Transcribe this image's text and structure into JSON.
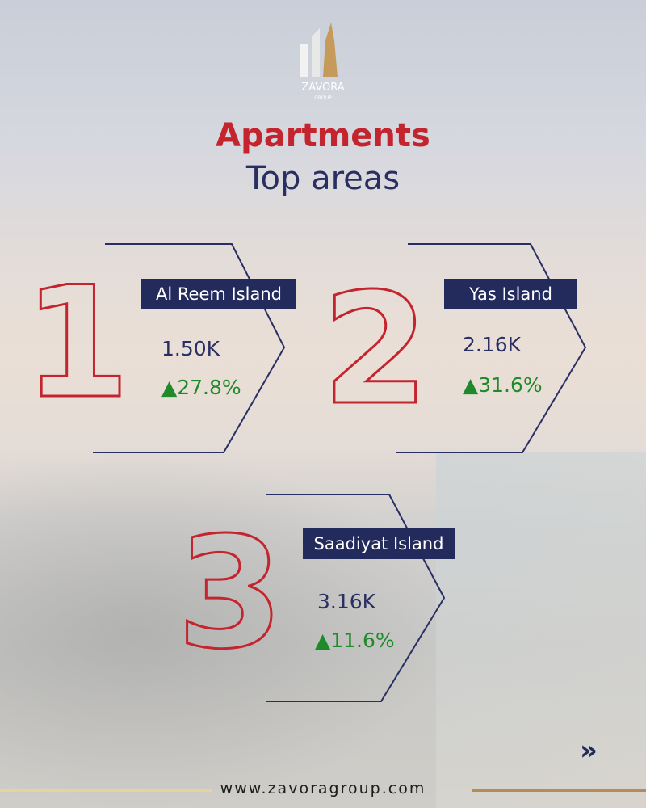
{
  "brand": {
    "name": "ZAVORA",
    "sub": "GROUP"
  },
  "title": "Apartments",
  "subtitle": "Top areas",
  "areas": [
    {
      "rank": "1",
      "name": "Al Reem Island",
      "value": "1.50K",
      "change": "▲27.8%"
    },
    {
      "rank": "2",
      "name": "Yas Island",
      "value": "2.16K",
      "change": "▲31.6%"
    },
    {
      "rank": "3",
      "name": "Saadiyat Island",
      "value": "3.16K",
      "change": "▲11.6%"
    }
  ],
  "footer": {
    "url": "www.zavoragroup.com"
  },
  "icons": {
    "next": "double-chevron-right-icon"
  },
  "colors": {
    "navy": "#232a5c",
    "red": "#c4242e",
    "green": "#1f8a2a",
    "gold": "#c59a5a"
  }
}
